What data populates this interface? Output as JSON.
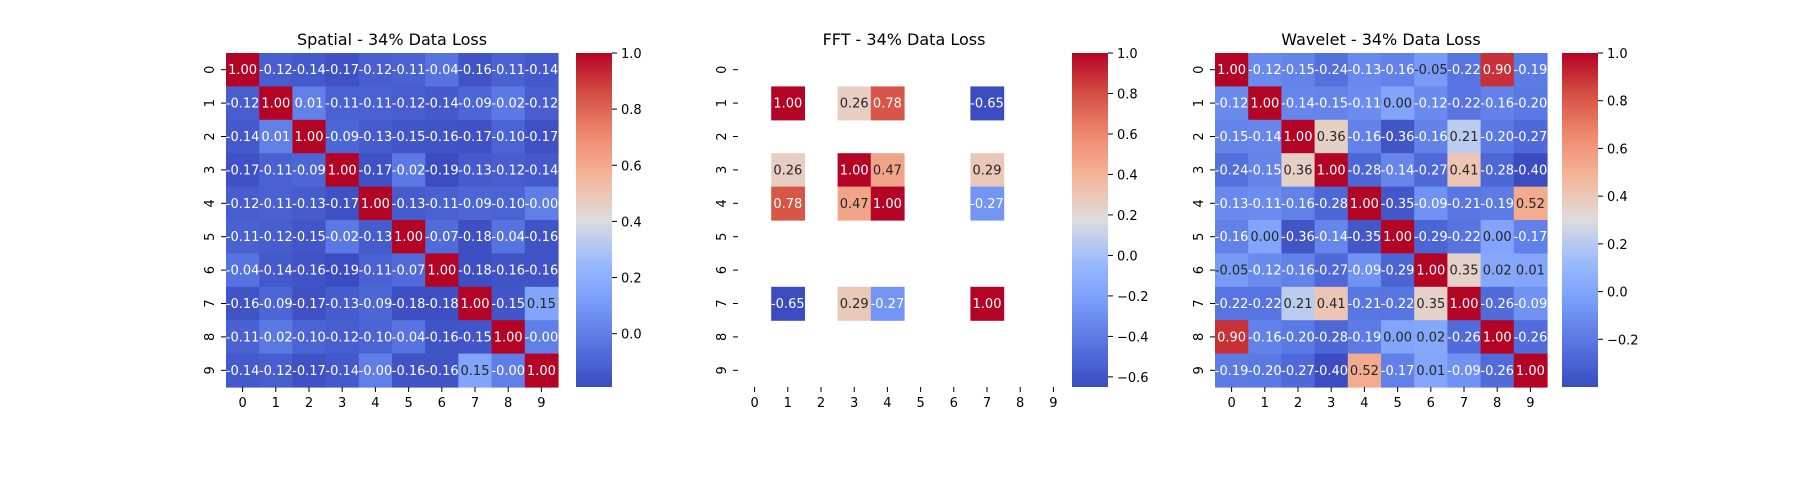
{
  "chart_data": [
    {
      "type": "heatmap",
      "title": "Spatial - 34% Data Loss",
      "x_ticks": [
        "0",
        "1",
        "2",
        "3",
        "4",
        "5",
        "6",
        "7",
        "8",
        "9"
      ],
      "y_ticks": [
        "0",
        "1",
        "2",
        "3",
        "4",
        "5",
        "6",
        "7",
        "8",
        "9"
      ],
      "colorbar_ticks": [
        "1.0",
        "0.8",
        "0.6",
        "0.4",
        "0.2",
        "0.0"
      ],
      "colorbar_values": [
        1.0,
        0.8,
        0.6,
        0.4,
        0.2,
        0.0
      ],
      "vmin": -0.19,
      "vmax": 1.0,
      "colormap": "coolwarm",
      "labels": [
        [
          "1.00",
          "-0.12",
          "-0.14",
          "-0.17",
          "-0.12",
          "-0.11",
          "-0.04",
          "-0.16",
          "-0.11",
          "-0.14"
        ],
        [
          "-0.12",
          "1.00",
          "0.01",
          "-0.11",
          "-0.11",
          "-0.12",
          "-0.14",
          "-0.09",
          "-0.02",
          "-0.12"
        ],
        [
          "-0.14",
          "0.01",
          "1.00",
          "-0.09",
          "-0.13",
          "-0.15",
          "-0.16",
          "-0.17",
          "-0.10",
          "-0.17"
        ],
        [
          "-0.17",
          "-0.11",
          "-0.09",
          "1.00",
          "-0.17",
          "-0.02",
          "-0.19",
          "-0.13",
          "-0.12",
          "-0.14"
        ],
        [
          "-0.12",
          "-0.11",
          "-0.13",
          "-0.17",
          "1.00",
          "-0.13",
          "-0.11",
          "-0.09",
          "-0.10",
          "-0.00"
        ],
        [
          "-0.11",
          "-0.12",
          "-0.15",
          "-0.02",
          "-0.13",
          "1.00",
          "-0.07",
          "-0.18",
          "-0.04",
          "-0.16"
        ],
        [
          "-0.04",
          "-0.14",
          "-0.16",
          "-0.19",
          "-0.11",
          "-0.07",
          "1.00",
          "-0.18",
          "-0.16",
          "-0.16"
        ],
        [
          "-0.16",
          "-0.09",
          "-0.17",
          "-0.13",
          "-0.09",
          "-0.18",
          "-0.18",
          "1.00",
          "-0.15",
          "0.15"
        ],
        [
          "-0.11",
          "-0.02",
          "-0.10",
          "-0.12",
          "-0.10",
          "-0.04",
          "-0.16",
          "-0.15",
          "1.00",
          "-0.00"
        ],
        [
          "-0.14",
          "-0.12",
          "-0.17",
          "-0.14",
          "-0.00",
          "-0.16",
          "-0.16",
          "0.15",
          "-0.00",
          "1.00"
        ]
      ]
    },
    {
      "type": "heatmap",
      "title": "FFT - 34% Data Loss",
      "x_ticks": [
        "0",
        "1",
        "2",
        "3",
        "4",
        "5",
        "6",
        "7",
        "8",
        "9"
      ],
      "y_ticks": [
        "0",
        "1",
        "2",
        "3",
        "4",
        "5",
        "6",
        "7",
        "8",
        "9"
      ],
      "colorbar_ticks": [
        "1.0",
        "0.8",
        "0.6",
        "0.4",
        "0.2",
        "0.0",
        "−0.2",
        "−0.4",
        "−0.6"
      ],
      "colorbar_values": [
        1.0,
        0.8,
        0.6,
        0.4,
        0.2,
        0.0,
        -0.2,
        -0.4,
        -0.6
      ],
      "vmin": -0.65,
      "vmax": 1.0,
      "colormap": "coolwarm",
      "labels": [
        [
          "",
          "",
          "",
          "",
          "",
          "",
          "",
          "",
          "",
          ""
        ],
        [
          "",
          "1.00",
          "",
          "0.26",
          "0.78",
          "",
          "",
          "-0.65",
          "",
          ""
        ],
        [
          "",
          "",
          "",
          "",
          "",
          "",
          "",
          "",
          "",
          ""
        ],
        [
          "",
          "0.26",
          "",
          "1.00",
          "0.47",
          "",
          "",
          "0.29",
          "",
          ""
        ],
        [
          "",
          "0.78",
          "",
          "0.47",
          "1.00",
          "",
          "",
          "-0.27",
          "",
          ""
        ],
        [
          "",
          "",
          "",
          "",
          "",
          "",
          "",
          "",
          "",
          ""
        ],
        [
          "",
          "",
          "",
          "",
          "",
          "",
          "",
          "",
          "",
          ""
        ],
        [
          "",
          "-0.65",
          "",
          "0.29",
          "-0.27",
          "",
          "",
          "1.00",
          "",
          ""
        ],
        [
          "",
          "",
          "",
          "",
          "",
          "",
          "",
          "",
          "",
          ""
        ],
        [
          "",
          "",
          "",
          "",
          "",
          "",
          "",
          "",
          "",
          ""
        ]
      ]
    },
    {
      "type": "heatmap",
      "title": "Wavelet - 34% Data Loss",
      "x_ticks": [
        "0",
        "1",
        "2",
        "3",
        "4",
        "5",
        "6",
        "7",
        "8",
        "9"
      ],
      "y_ticks": [
        "0",
        "1",
        "2",
        "3",
        "4",
        "5",
        "6",
        "7",
        "8",
        "9"
      ],
      "colorbar_ticks": [
        "1.0",
        "0.8",
        "0.6",
        "0.4",
        "0.2",
        "0.0",
        "−0.2"
      ],
      "colorbar_values": [
        1.0,
        0.8,
        0.6,
        0.4,
        0.2,
        0.0,
        -0.2
      ],
      "vmin": -0.4,
      "vmax": 1.0,
      "colormap": "coolwarm",
      "labels": [
        [
          "1.00",
          "-0.12",
          "-0.15",
          "-0.24",
          "-0.13",
          "-0.16",
          "-0.05",
          "-0.22",
          "0.90",
          "-0.19"
        ],
        [
          "-0.12",
          "1.00",
          "-0.14",
          "-0.15",
          "-0.11",
          "0.00",
          "-0.12",
          "-0.22",
          "-0.16",
          "-0.20"
        ],
        [
          "-0.15",
          "-0.14",
          "1.00",
          "0.36",
          "-0.16",
          "-0.36",
          "-0.16",
          "0.21",
          "-0.20",
          "-0.27"
        ],
        [
          "-0.24",
          "-0.15",
          "0.36",
          "1.00",
          "-0.28",
          "-0.14",
          "-0.27",
          "0.41",
          "-0.28",
          "-0.40"
        ],
        [
          "-0.13",
          "-0.11",
          "-0.16",
          "-0.28",
          "1.00",
          "-0.35",
          "-0.09",
          "-0.21",
          "-0.19",
          "0.52"
        ],
        [
          "-0.16",
          "0.00",
          "-0.36",
          "-0.14",
          "-0.35",
          "1.00",
          "-0.29",
          "-0.22",
          "0.00",
          "-0.17"
        ],
        [
          "-0.05",
          "-0.12",
          "-0.16",
          "-0.27",
          "-0.09",
          "-0.29",
          "1.00",
          "0.35",
          "0.02",
          "0.01"
        ],
        [
          "-0.22",
          "-0.22",
          "0.21",
          "0.41",
          "-0.21",
          "-0.22",
          "0.35",
          "1.00",
          "-0.26",
          "-0.09"
        ],
        [
          "0.90",
          "-0.16",
          "-0.20",
          "-0.28",
          "-0.19",
          "0.00",
          "0.02",
          "-0.26",
          "1.00",
          "-0.26"
        ],
        [
          "-0.19",
          "-0.20",
          "-0.27",
          "-0.40",
          "0.52",
          "-0.17",
          "0.01",
          "-0.09",
          "-0.26",
          "1.00"
        ]
      ]
    }
  ]
}
